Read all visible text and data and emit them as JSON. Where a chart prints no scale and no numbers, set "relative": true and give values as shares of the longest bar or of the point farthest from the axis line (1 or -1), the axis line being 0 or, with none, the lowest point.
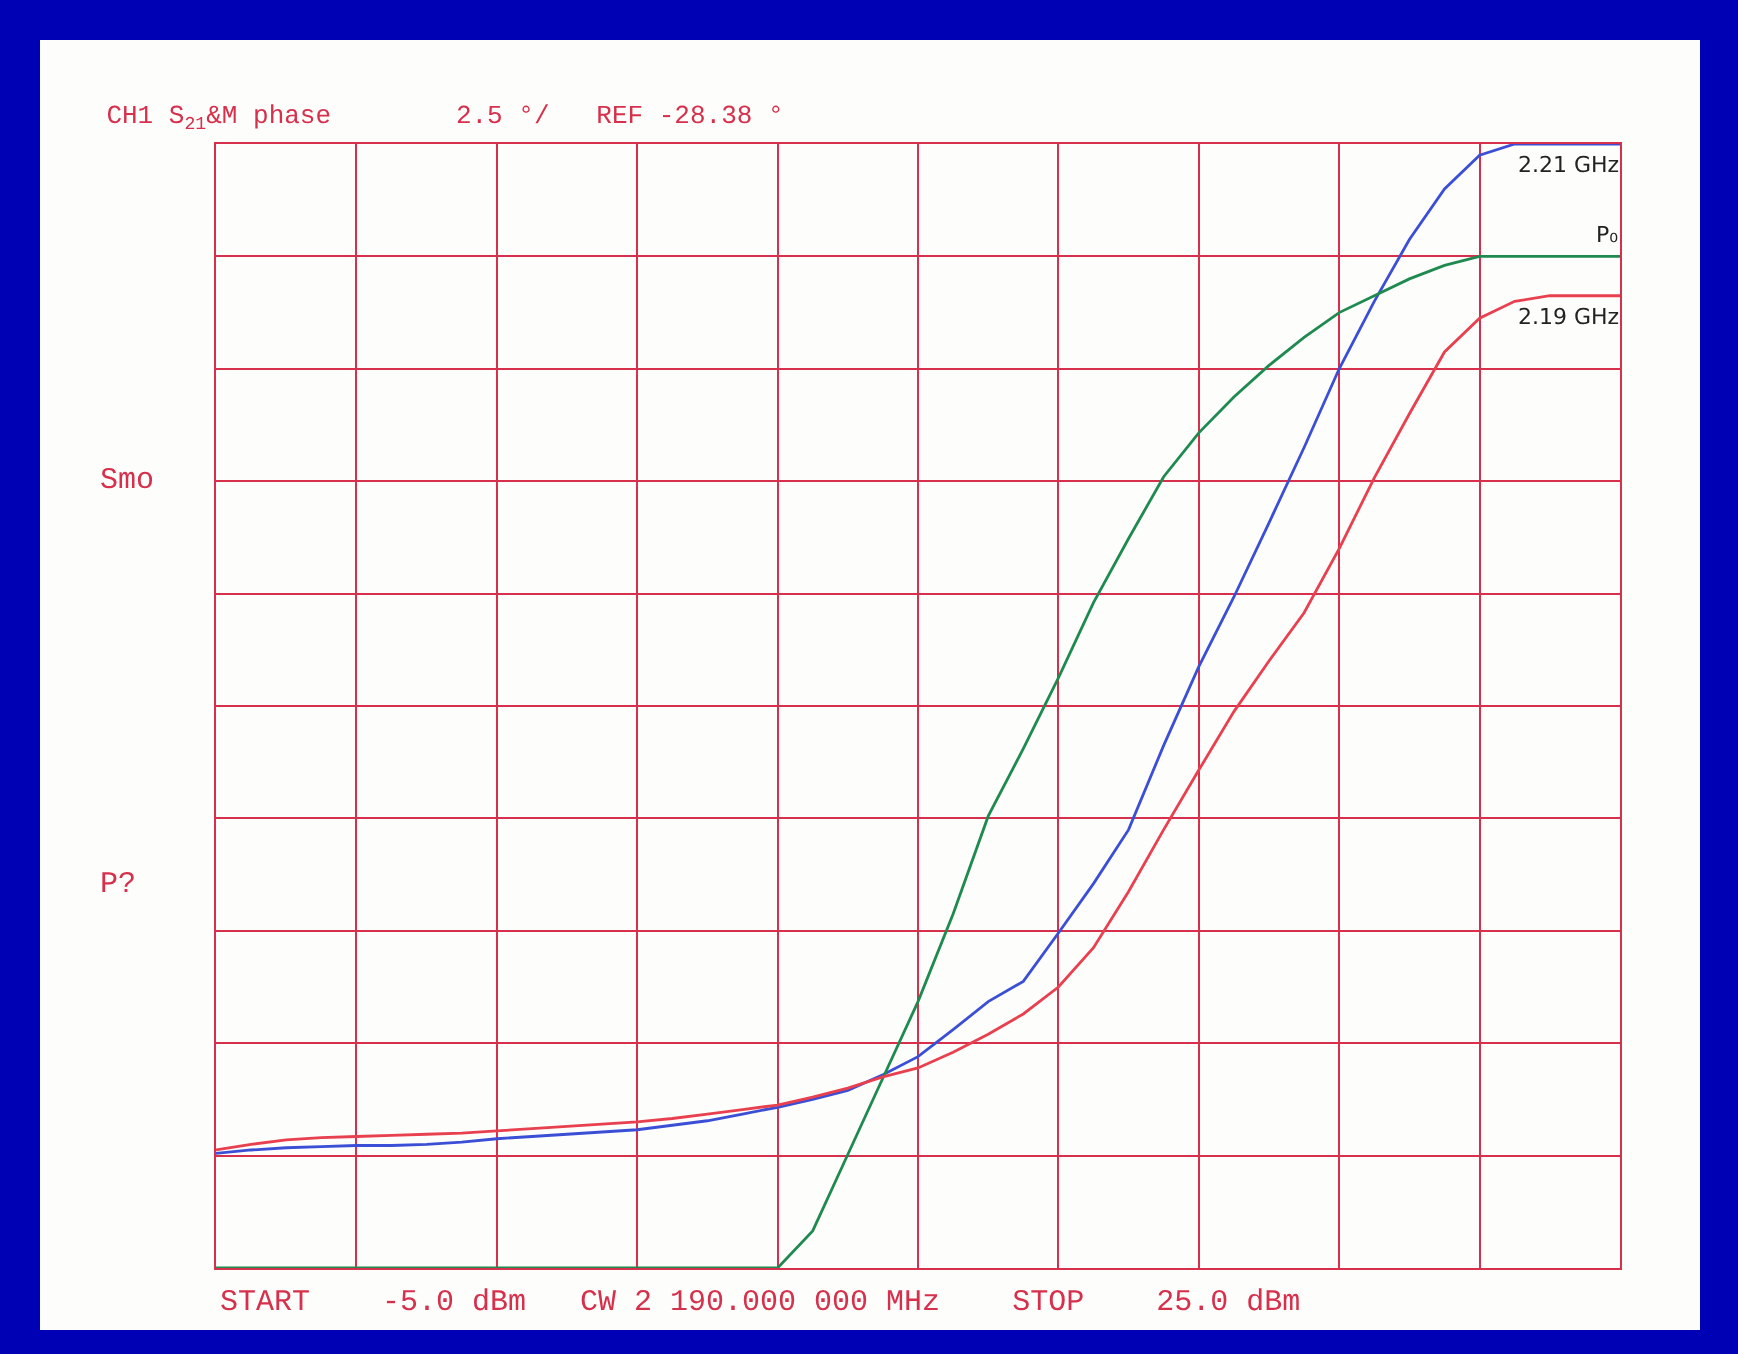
{
  "chart_data": {
    "type": "line",
    "title": "CH1 S$_{21}$&M phase        2.5 °/   REF -28.38 °",
    "relative": true,
    "grid": true,
    "legend": false,
    "line_style": "solid",
    "marker": "none",
    "annotations": [
      "Smo",
      "P?",
      "START    -5.0 dBm   CW 2 190.000 000 MHz    STOP    25.0 dBm"
    ],
    "categories": [
      null,
      null,
      null,
      null,
      null,
      null,
      null,
      null,
      null,
      null,
      null,
      null,
      null,
      null,
      null,
      null,
      null,
      null,
      null,
      null,
      null,
      null,
      null,
      null,
      null,
      null,
      null,
      null,
      null,
      null,
      null,
      null,
      null,
      null,
      null,
      null,
      null,
      null,
      null,
      null,
      null
    ],
    "series": [
      {
        "name": "2.21 GHz",
        "color": "#3b4fd6",
        "values": [
          0.102,
          0.105,
          0.107,
          0.108,
          0.109,
          0.109,
          0.11,
          0.112,
          0.115,
          0.117,
          0.119,
          0.121,
          0.123,
          0.127,
          0.131,
          0.137,
          0.143,
          0.15,
          0.158,
          0.172,
          0.188,
          0.212,
          0.237,
          0.255,
          0.298,
          0.342,
          0.39,
          0.465,
          0.535,
          0.597,
          0.663,
          0.73,
          0.8,
          0.86,
          0.915,
          0.96,
          0.99,
          1,
          1,
          1,
          1
        ]
      },
      {
        "name": "P₀",
        "color": "#1f8a50",
        "values": [
          0,
          0,
          0,
          0,
          0,
          0,
          0,
          0,
          0,
          0,
          0,
          0,
          0,
          0,
          0,
          0,
          0,
          0.033,
          0.101,
          0.169,
          0.237,
          0.315,
          0.402,
          0.462,
          0.525,
          0.592,
          0.649,
          0.704,
          0.743,
          0.775,
          0.803,
          0.828,
          0.85,
          0.865,
          0.88,
          0.892,
          0.9,
          0.9,
          0.9,
          0.9,
          0.9
        ]
      },
      {
        "name": "2.19 GHz",
        "color": "#e8404f",
        "values": [
          0.105,
          0.11,
          0.114,
          0.116,
          0.117,
          0.118,
          0.119,
          0.12,
          0.122,
          0.124,
          0.126,
          0.128,
          0.13,
          0.133,
          0.137,
          0.141,
          0.145,
          0.152,
          0.16,
          0.17,
          0.178,
          0.192,
          0.208,
          0.226,
          0.25,
          0.285,
          0.335,
          0.39,
          0.443,
          0.495,
          0.54,
          0.583,
          0.64,
          0.703,
          0.76,
          0.815,
          0.845,
          0.86,
          0.865,
          0.865,
          0.865
        ]
      }
    ]
  }
}
